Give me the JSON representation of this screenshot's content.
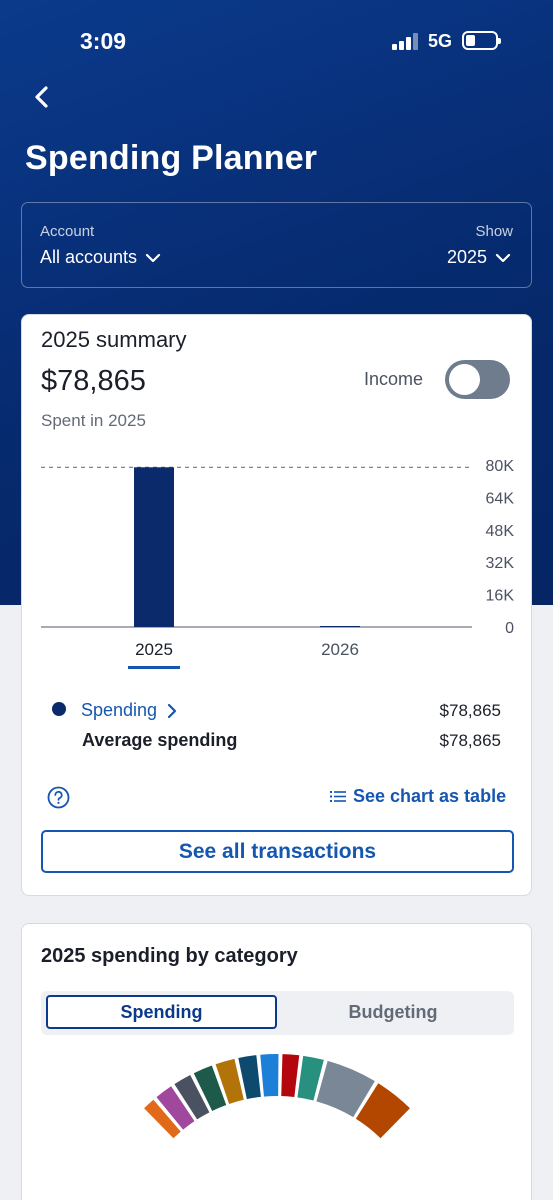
{
  "status_bar": {
    "time": "3:09",
    "network": "5G"
  },
  "header": {
    "title": "Spending Planner",
    "back_icon": "chevron-left-icon"
  },
  "filters": {
    "account_label": "Account",
    "account_value": "All accounts",
    "show_label": "Show",
    "show_value": "2025"
  },
  "summary": {
    "title": "2025 summary",
    "amount": "$78,865",
    "subtitle": "Spent in 2025",
    "income_toggle_label": "Income",
    "income_toggle_on": false
  },
  "chart_data": {
    "type": "bar",
    "categories": [
      "2025",
      "2026"
    ],
    "values": [
      78865,
      0
    ],
    "selected_category": "2025",
    "ytick_labels": [
      "80K",
      "64K",
      "48K",
      "32K",
      "16K",
      "0"
    ],
    "ylim": [
      0,
      80000
    ],
    "reference_line": 78865,
    "bar_color": "#0a2a6b"
  },
  "legend": {
    "spending_label": "Spending",
    "spending_value": "$78,865",
    "average_label": "Average spending",
    "average_value": "$78,865"
  },
  "actions": {
    "see_table_label": "See chart as table",
    "see_transactions_label": "See all transactions"
  },
  "category": {
    "title": "2025 spending by category",
    "tabs": [
      "Spending",
      "Budgeting"
    ],
    "active_tab": "Spending"
  },
  "colors": {
    "brand_blue": "#0b3a8c",
    "link_blue": "#1557b0",
    "donut_segments": [
      "#e06a1a",
      "#a0489e",
      "#4a5160",
      "#1e5a4a",
      "#b27409",
      "#0d4a6e",
      "#1c7fd8",
      "#b3060f",
      "#27907e",
      "#7a8797",
      "#b34700"
    ]
  }
}
